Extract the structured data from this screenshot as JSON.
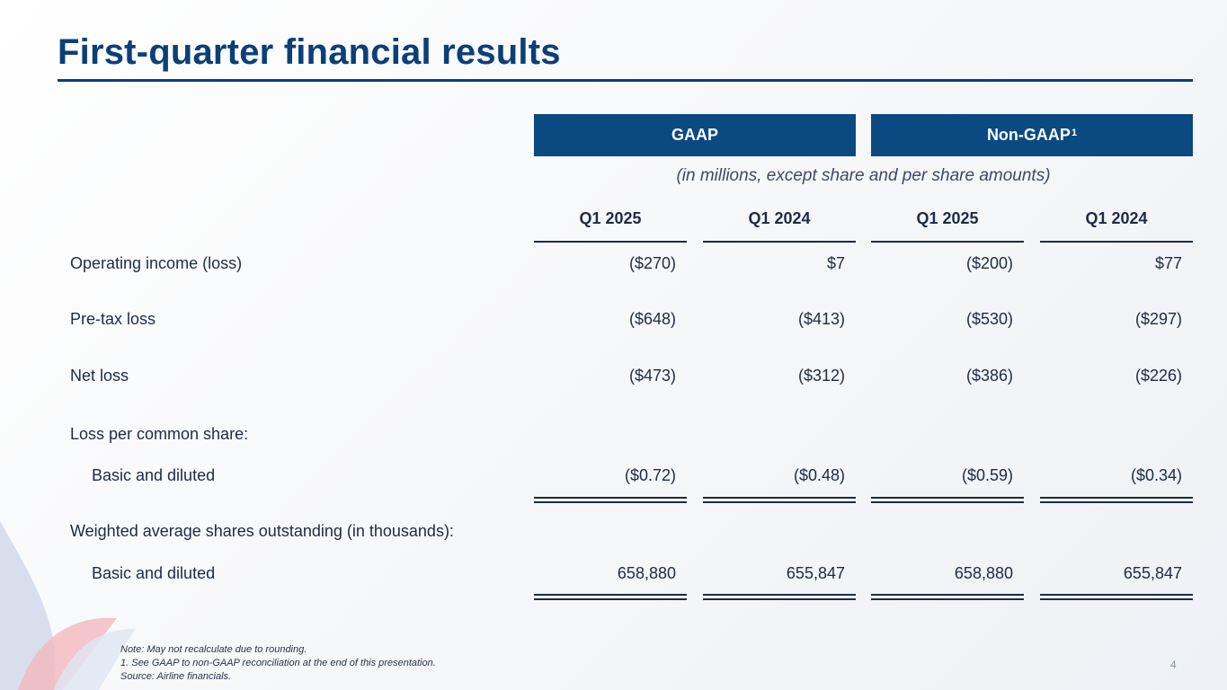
{
  "slide": {
    "title": "First-quarter financial results",
    "page_number": "4"
  },
  "table": {
    "group_headers": {
      "gaap": "GAAP",
      "non_gaap": "Non-GAAP",
      "non_gaap_footnote_mark": "1"
    },
    "units_note": "(in millions, except share and per share amounts)",
    "columns": [
      "Q1 2025",
      "Q1 2024",
      "Q1 2025",
      "Q1 2024"
    ],
    "rows": [
      {
        "label": "Operating income (loss)",
        "values": [
          "($270)",
          "$7",
          "($200)",
          "$77"
        ]
      },
      {
        "label": "Pre-tax loss",
        "values": [
          "($648)",
          "($413)",
          "($530)",
          "($297)"
        ]
      },
      {
        "label": "Net loss",
        "values": [
          "($473)",
          "($312)",
          "($386)",
          "($226)"
        ]
      },
      {
        "label": "Loss per common share:"
      },
      {
        "label": "Basic and diluted",
        "values": [
          "($0.72)",
          "($0.48)",
          "($0.59)",
          "($0.34)"
        ]
      },
      {
        "label": "Weighted average shares outstanding (in thousands):"
      },
      {
        "label": "Basic and diluted",
        "values": [
          "658,880",
          "655,847",
          "658,880",
          "655,847"
        ]
      }
    ]
  },
  "notes": {
    "line1": "Note:  May not recalculate due to rounding.",
    "line2": "1. See GAAP to non-GAAP reconciliation at the end of this presentation.",
    "line3": "Source: Airline financials."
  },
  "colors": {
    "title": "#0b3f78",
    "header_fill": "#0b4a80",
    "text": "#1d2b44"
  }
}
